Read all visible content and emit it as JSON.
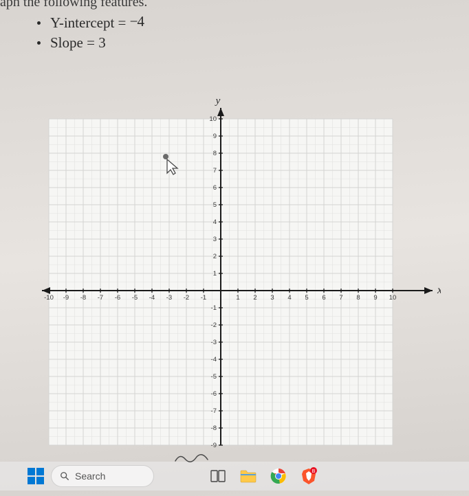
{
  "problem": {
    "truncated_header": "aph the following features.",
    "bullet1_label": "Y-intercept = ",
    "bullet1_value": "−4",
    "bullet2_label": "Slope = ",
    "bullet2_value": "3"
  },
  "graph": {
    "type": "cartesian-grid",
    "x_axis_label": "x",
    "y_axis_label": "y",
    "xlim": [
      -10,
      10
    ],
    "ylim": [
      -9,
      10
    ],
    "x_ticks": [
      -10,
      -9,
      -8,
      -7,
      -6,
      -5,
      -4,
      -3,
      -2,
      -1,
      1,
      2,
      3,
      4,
      5,
      6,
      7,
      8,
      9,
      10
    ],
    "y_ticks": [
      -9,
      -8,
      -7,
      -6,
      -5,
      -4,
      -3,
      -2,
      -1,
      1,
      2,
      3,
      4,
      5,
      6,
      7,
      8,
      9,
      10
    ],
    "tick_fontsize": 9,
    "axis_label_fontsize": 15,
    "grid_color": "#d8d8d8",
    "major_grid_color": "#d0d0d0",
    "axis_color": "#1a1a1a",
    "tick_label_color": "#3a3a3a",
    "background_color": "#f6f6f4",
    "outer_background": "transparent",
    "axis_width": 2,
    "arrow_size": 8
  },
  "taskbar": {
    "search_placeholder": "Search",
    "colors": {
      "win_blue": "#0078d4",
      "chrome_red": "#ea4335",
      "chrome_yellow": "#fbbc05",
      "chrome_green": "#34a853",
      "chrome_blue": "#4285f4",
      "folder": "#ffc94a",
      "brave": "#fb542b"
    }
  }
}
